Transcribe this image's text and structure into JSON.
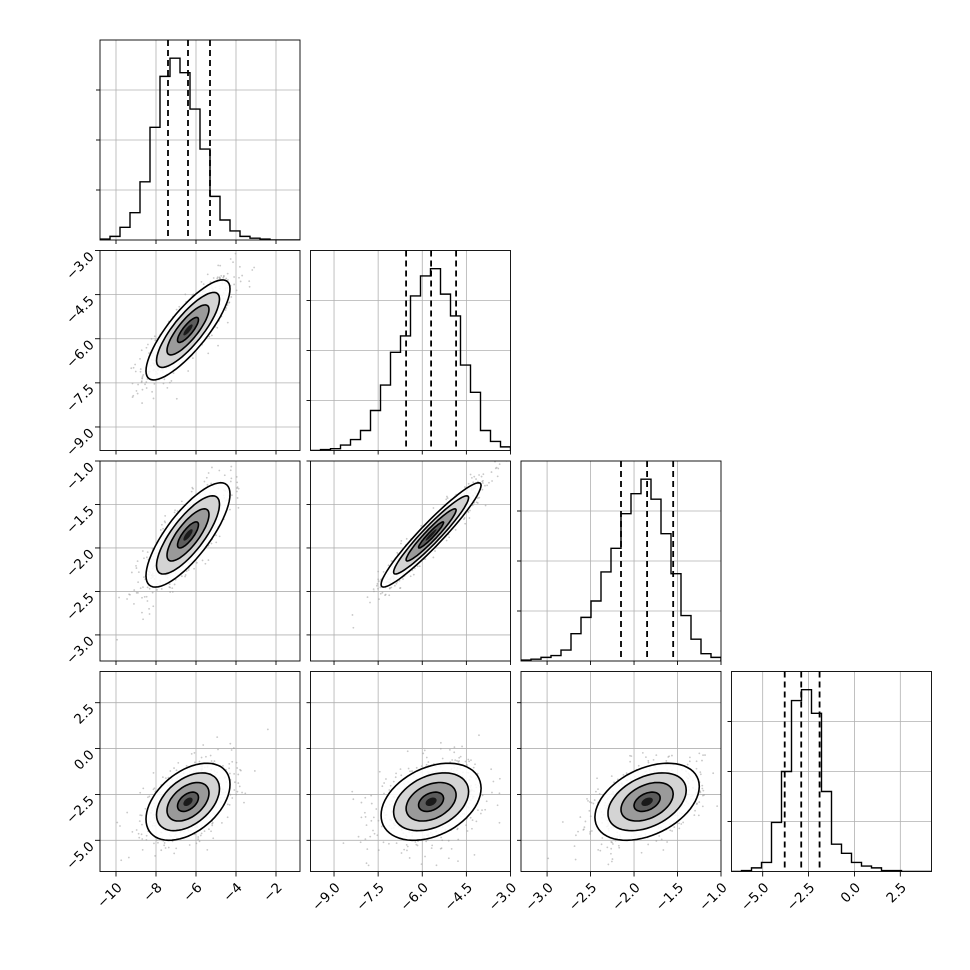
{
  "chart_data": {
    "type": "corner",
    "n_params": 4,
    "params": [
      {
        "index": 0,
        "range": [
          -10.8,
          -0.8
        ],
        "quantiles": [
          -7.4,
          -6.4,
          -5.3
        ],
        "xticks": [
          -10,
          -8,
          -6,
          -4,
          -2
        ],
        "xtick_labels": [
          "−10",
          "−8",
          "−6",
          "−4",
          "−2"
        ],
        "hist_edges": [
          -10.8,
          -10.3,
          -9.8,
          -9.3,
          -8.8,
          -8.3,
          -7.8,
          -7.3,
          -6.8,
          -6.3,
          -5.8,
          -5.3,
          -4.8,
          -4.3,
          -3.8,
          -3.3,
          -2.8,
          -2.3,
          -1.8,
          -1.3,
          -0.8
        ],
        "hist_counts": [
          0.005,
          0.02,
          0.07,
          0.15,
          0.32,
          0.62,
          0.9,
          1.0,
          0.92,
          0.72,
          0.5,
          0.24,
          0.11,
          0.05,
          0.02,
          0.01,
          0.005,
          0.0,
          0.0,
          0.0
        ]
      },
      {
        "index": 1,
        "range": [
          -9.8,
          -3.0
        ],
        "quantiles": [
          -6.55,
          -5.7,
          -4.85
        ],
        "xticks": [
          -9.0,
          -7.5,
          -6.0,
          -4.5,
          -3.0
        ],
        "xtick_labels": [
          "−9.0",
          "−7.5",
          "−6.0",
          "−4.5",
          "−3.0"
        ],
        "yticks": [
          -3.0,
          -4.5,
          -6.0,
          -7.5,
          -9.0
        ],
        "ytick_labels": [
          "−3.0",
          "−4.5",
          "−6.0",
          "−7.5",
          "−9.0"
        ],
        "hist_edges": [
          -9.8,
          -9.46,
          -9.12,
          -8.78,
          -8.44,
          -8.1,
          -7.76,
          -7.42,
          -7.08,
          -6.74,
          -6.4,
          -6.06,
          -5.72,
          -5.38,
          -5.04,
          -4.7,
          -4.36,
          -4.02,
          -3.68,
          -3.34,
          -3.0
        ],
        "hist_counts": [
          0.0,
          0.005,
          0.01,
          0.03,
          0.06,
          0.11,
          0.22,
          0.36,
          0.54,
          0.63,
          0.85,
          0.96,
          1.0,
          0.86,
          0.74,
          0.47,
          0.32,
          0.11,
          0.05,
          0.02
        ]
      },
      {
        "index": 2,
        "range": [
          -3.3,
          -1.0
        ],
        "quantiles": [
          -2.15,
          -1.85,
          -1.55
        ],
        "xticks": [
          -3.0,
          -2.5,
          -2.0,
          -1.5,
          -1.0
        ],
        "xtick_labels": [
          "−3.0",
          "−2.5",
          "−2.0",
          "−1.5",
          "−1.0"
        ],
        "yticks": [
          -1.0,
          -1.5,
          -2.0,
          -2.5,
          -3.0
        ],
        "ytick_labels": [
          "−1.0",
          "−1.5",
          "−2.0",
          "−2.5",
          "−3.0"
        ],
        "hist_edges": [
          -3.3,
          -3.185,
          -3.07,
          -2.955,
          -2.84,
          -2.725,
          -2.61,
          -2.495,
          -2.38,
          -2.265,
          -2.15,
          -2.035,
          -1.92,
          -1.805,
          -1.69,
          -1.575,
          -1.46,
          -1.345,
          -1.23,
          -1.115,
          -1.0
        ],
        "hist_counts": [
          0.005,
          0.01,
          0.02,
          0.03,
          0.06,
          0.15,
          0.24,
          0.33,
          0.49,
          0.62,
          0.81,
          0.92,
          1.0,
          0.89,
          0.7,
          0.48,
          0.25,
          0.12,
          0.04,
          0.02
        ]
      },
      {
        "index": 3,
        "range": [
          -6.7,
          4.2
        ],
        "quantiles": [
          -3.8,
          -2.9,
          -1.9
        ],
        "xticks": [
          -5.0,
          -2.5,
          0.0,
          2.5
        ],
        "xtick_labels": [
          "−5.0",
          "−2.5",
          "0.0",
          "2.5"
        ],
        "yticks": [
          2.5,
          0.0,
          -2.5,
          -5.0
        ],
        "ytick_labels": [
          "2.5",
          "0.0",
          "−2.5",
          "−5.0"
        ],
        "hist_edges": [
          -6.7,
          -6.155,
          -5.61,
          -5.065,
          -4.52,
          -3.975,
          -3.43,
          -2.885,
          -2.34,
          -1.795,
          -1.25,
          -0.705,
          -0.16,
          0.385,
          0.93,
          1.475,
          2.02,
          2.565,
          3.11,
          3.655,
          4.2
        ],
        "hist_counts": [
          0.0,
          0.005,
          0.02,
          0.05,
          0.27,
          0.55,
          0.94,
          1.0,
          0.87,
          0.44,
          0.15,
          0.1,
          0.05,
          0.03,
          0.02,
          0.005,
          0.005,
          0.0,
          0.0,
          0.0
        ]
      }
    ],
    "pairs": [
      {
        "x": 0,
        "y": 1,
        "center": [
          -6.4,
          -5.7
        ],
        "sd": [
          1.05,
          0.85
        ],
        "corr": 0.82,
        "n_points": 700
      },
      {
        "x": 0,
        "y": 2,
        "center": [
          -6.4,
          -1.85
        ],
        "sd": [
          1.05,
          0.3
        ],
        "corr": 0.78,
        "n_points": 700
      },
      {
        "x": 1,
        "y": 2,
        "center": [
          -5.7,
          -1.85
        ],
        "sd": [
          0.85,
          0.3
        ],
        "corr": 0.95,
        "n_points": 700
      },
      {
        "x": 0,
        "y": 3,
        "center": [
          -6.4,
          -2.9
        ],
        "sd": [
          1.05,
          1.05
        ],
        "corr": 0.45,
        "n_points": 700
      },
      {
        "x": 1,
        "y": 3,
        "center": [
          -5.7,
          -2.9
        ],
        "sd": [
          0.85,
          1.05
        ],
        "corr": 0.35,
        "n_points": 700
      },
      {
        "x": 2,
        "y": 3,
        "center": [
          -1.85,
          -2.9
        ],
        "sd": [
          0.3,
          1.05
        ],
        "corr": 0.4,
        "n_points": 700
      }
    ],
    "contour_levels_sigma": [
      0.5,
      1.0,
      1.5,
      2.0
    ],
    "grid": true,
    "colors": {
      "contour": "#000000",
      "scatter": "#9a9a9a",
      "density": "#000000",
      "grid": "#b0b0b0",
      "quantile": "#000000"
    }
  }
}
